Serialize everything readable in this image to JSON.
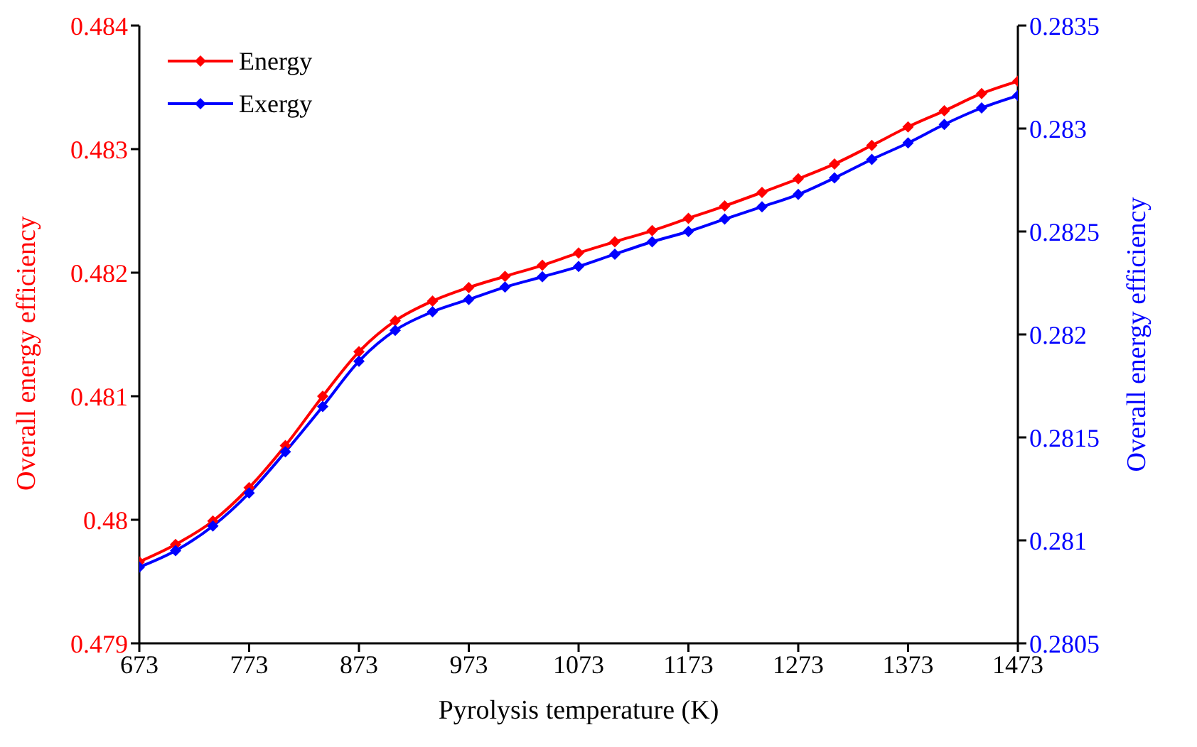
{
  "chart_data": {
    "type": "line",
    "xlabel": "Pyrolysis temperature (K)",
    "ylabel": "Overall energy efficiency",
    "y2label": "Overall energy efficiency",
    "x": [
      673,
      706,
      740,
      773,
      806,
      840,
      873,
      906,
      940,
      973,
      1006,
      1040,
      1073,
      1106,
      1140,
      1173,
      1206,
      1240,
      1273,
      1306,
      1340,
      1373,
      1406,
      1440,
      1473
    ],
    "series": [
      {
        "name": "Energy",
        "color": "#ff0000",
        "values": [
          0.47966,
          0.4798,
          0.47999,
          0.48026,
          0.4806,
          0.481,
          0.48136,
          0.48161,
          0.48177,
          0.48188,
          0.48197,
          0.48206,
          0.48216,
          0.48225,
          0.48234,
          0.48244,
          0.48254,
          0.48265,
          0.48276,
          0.48288,
          0.48303,
          0.48318,
          0.48331,
          0.48345,
          0.48355
        ]
      },
      {
        "name": "Exergy",
        "color": "#0000ff",
        "axis": "y2",
        "values": [
          0.28087,
          0.28095,
          0.28107,
          0.28123,
          0.28143,
          0.28165,
          0.28187,
          0.28202,
          0.28211,
          0.28217,
          0.28223,
          0.28228,
          0.28233,
          0.28239,
          0.28245,
          0.2825,
          0.28256,
          0.28262,
          0.28268,
          0.28276,
          0.28285,
          0.28293,
          0.28302,
          0.2831,
          0.28316
        ]
      }
    ],
    "xlim": [
      673,
      1473
    ],
    "xticks": [
      673,
      773,
      873,
      973,
      1073,
      1173,
      1273,
      1373,
      1473
    ],
    "ylim": [
      0.479,
      0.484
    ],
    "yticks": [
      0.479,
      0.48,
      0.481,
      0.482,
      0.483,
      0.484
    ],
    "y2lim": [
      0.2805,
      0.2835
    ],
    "y2ticks": [
      0.2805,
      0.281,
      0.2815,
      0.282,
      0.2825,
      0.283,
      0.2835
    ],
    "legend": "top left",
    "marker": "diamond",
    "line_style": "solid",
    "grid": false
  }
}
